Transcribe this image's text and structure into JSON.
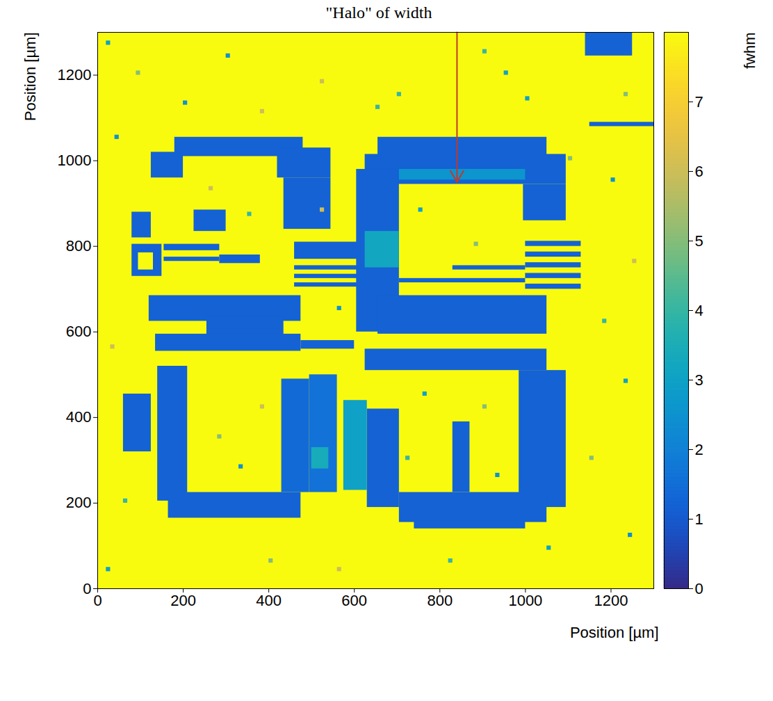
{
  "chart_data": {
    "type": "heatmap",
    "title": "\"Halo\" of width",
    "x_label": "Position [µm]",
    "y_label": "Position [µm]",
    "xlim": [
      0,
      1300
    ],
    "ylim": [
      0,
      1300
    ],
    "xticks": [
      0,
      200,
      400,
      600,
      800,
      1000,
      1200
    ],
    "yticks": [
      0,
      200,
      400,
      600,
      800,
      1000,
      1200
    ],
    "colorbar": {
      "label": "fwhm",
      "range": [
        0,
        8
      ],
      "ticks": [
        0,
        1,
        2,
        3,
        4,
        5,
        6,
        7
      ]
    },
    "arrow": {
      "x": 840,
      "from": 1300,
      "to": 950,
      "color": "#c0392b"
    },
    "cells": [
      {
        "x1": 0,
        "x2": 1300,
        "y1": 0,
        "y2": 1300,
        "value": 8
      },
      {
        "x1": 1140,
        "x2": 1250,
        "y1": 1245,
        "y2": 1300,
        "value": 1.2
      },
      {
        "x1": 1150,
        "x2": 1300,
        "y1": 1080,
        "y2": 1090,
        "value": 1.2
      },
      {
        "x1": 180,
        "x2": 480,
        "y1": 1010,
        "y2": 1055,
        "value": 1.2
      },
      {
        "x1": 125,
        "x2": 200,
        "y1": 960,
        "y2": 1020,
        "value": 1.2
      },
      {
        "x1": 420,
        "x2": 545,
        "y1": 960,
        "y2": 1030,
        "value": 1.2
      },
      {
        "x1": 435,
        "x2": 545,
        "y1": 840,
        "y2": 960,
        "value": 1.2
      },
      {
        "x1": 80,
        "x2": 125,
        "y1": 820,
        "y2": 880,
        "value": 1.2
      },
      {
        "x1": 225,
        "x2": 300,
        "y1": 835,
        "y2": 885,
        "value": 1.2
      },
      {
        "x1": 80,
        "x2": 150,
        "y1": 730,
        "y2": 805,
        "value": 1.2
      },
      {
        "x1": 95,
        "x2": 130,
        "y1": 745,
        "y2": 785,
        "value": 8
      },
      {
        "x1": 155,
        "x2": 285,
        "y1": 790,
        "y2": 805,
        "value": 1.2
      },
      {
        "x1": 155,
        "x2": 285,
        "y1": 765,
        "y2": 775,
        "value": 1.2
      },
      {
        "x1": 285,
        "x2": 380,
        "y1": 760,
        "y2": 780,
        "value": 1.2
      },
      {
        "x1": 460,
        "x2": 610,
        "y1": 770,
        "y2": 810,
        "value": 1.2
      },
      {
        "x1": 460,
        "x2": 610,
        "y1": 745,
        "y2": 755,
        "value": 1.2
      },
      {
        "x1": 460,
        "x2": 610,
        "y1": 725,
        "y2": 735,
        "value": 1.2
      },
      {
        "x1": 460,
        "x2": 610,
        "y1": 705,
        "y2": 715,
        "value": 1.2
      },
      {
        "x1": 655,
        "x2": 1050,
        "y1": 980,
        "y2": 1055,
        "value": 1.2
      },
      {
        "x1": 625,
        "x2": 1095,
        "y1": 945,
        "y2": 1015,
        "value": 1.2
      },
      {
        "x1": 605,
        "x2": 705,
        "y1": 600,
        "y2": 980,
        "value": 1.2
      },
      {
        "x1": 655,
        "x2": 1050,
        "y1": 595,
        "y2": 685,
        "value": 1.2
      },
      {
        "x1": 995,
        "x2": 1095,
        "y1": 860,
        "y2": 945,
        "value": 1.2
      },
      {
        "x1": 1000,
        "x2": 1130,
        "y1": 800,
        "y2": 812,
        "value": 1.2
      },
      {
        "x1": 1000,
        "x2": 1130,
        "y1": 775,
        "y2": 787,
        "value": 1.2
      },
      {
        "x1": 1000,
        "x2": 1130,
        "y1": 750,
        "y2": 762,
        "value": 1.2
      },
      {
        "x1": 1000,
        "x2": 1130,
        "y1": 725,
        "y2": 737,
        "value": 1.2
      },
      {
        "x1": 1000,
        "x2": 1130,
        "y1": 700,
        "y2": 712,
        "value": 1.2
      },
      {
        "x1": 705,
        "x2": 1000,
        "y1": 715,
        "y2": 725,
        "value": 1.2
      },
      {
        "x1": 830,
        "x2": 1000,
        "y1": 745,
        "y2": 755,
        "value": 1.2
      },
      {
        "x1": 705,
        "x2": 1000,
        "y1": 955,
        "y2": 980,
        "value": 2.6
      },
      {
        "x1": 625,
        "x2": 705,
        "y1": 750,
        "y2": 835,
        "value": 3.2
      },
      {
        "x1": 120,
        "x2": 475,
        "y1": 625,
        "y2": 685,
        "value": 1.2
      },
      {
        "x1": 255,
        "x2": 435,
        "y1": 585,
        "y2": 635,
        "value": 1.2
      },
      {
        "x1": 135,
        "x2": 475,
        "y1": 555,
        "y2": 595,
        "value": 1.2
      },
      {
        "x1": 475,
        "x2": 600,
        "y1": 560,
        "y2": 580,
        "value": 1.2
      },
      {
        "x1": 625,
        "x2": 1050,
        "y1": 510,
        "y2": 560,
        "value": 1.2
      },
      {
        "x1": 985,
        "x2": 1095,
        "y1": 190,
        "y2": 510,
        "value": 1.2
      },
      {
        "x1": 705,
        "x2": 1050,
        "y1": 155,
        "y2": 225,
        "value": 1.2
      },
      {
        "x1": 740,
        "x2": 1000,
        "y1": 140,
        "y2": 158,
        "value": 1.2
      },
      {
        "x1": 630,
        "x2": 705,
        "y1": 190,
        "y2": 420,
        "value": 1.2
      },
      {
        "x1": 830,
        "x2": 870,
        "y1": 225,
        "y2": 390,
        "value": 1.2
      },
      {
        "x1": 60,
        "x2": 125,
        "y1": 320,
        "y2": 455,
        "value": 1.2
      },
      {
        "x1": 140,
        "x2": 210,
        "y1": 205,
        "y2": 520,
        "value": 1.2
      },
      {
        "x1": 165,
        "x2": 475,
        "y1": 165,
        "y2": 225,
        "value": 1.2
      },
      {
        "x1": 430,
        "x2": 495,
        "y1": 225,
        "y2": 490,
        "value": 1.4
      },
      {
        "x1": 495,
        "x2": 560,
        "y1": 225,
        "y2": 500,
        "value": 1.6
      },
      {
        "x1": 575,
        "x2": 630,
        "y1": 230,
        "y2": 440,
        "value": 3.0
      },
      {
        "x1": 500,
        "x2": 540,
        "y1": 280,
        "y2": 330,
        "value": 3.4
      },
      {
        "x1": 20,
        "x2": 30,
        "y1": 1270,
        "y2": 1280,
        "value": 3
      },
      {
        "x1": 90,
        "x2": 100,
        "y1": 1200,
        "y2": 1210,
        "value": 5
      },
      {
        "x1": 300,
        "x2": 310,
        "y1": 1240,
        "y2": 1250,
        "value": 2.5
      },
      {
        "x1": 520,
        "x2": 530,
        "y1": 1180,
        "y2": 1190,
        "value": 6
      },
      {
        "x1": 700,
        "x2": 710,
        "y1": 1150,
        "y2": 1160,
        "value": 4
      },
      {
        "x1": 950,
        "x2": 960,
        "y1": 1200,
        "y2": 1210,
        "value": 3
      },
      {
        "x1": 1230,
        "x2": 1240,
        "y1": 1150,
        "y2": 1160,
        "value": 5
      },
      {
        "x1": 40,
        "x2": 50,
        "y1": 1050,
        "y2": 1060,
        "value": 2.5
      },
      {
        "x1": 260,
        "x2": 270,
        "y1": 930,
        "y2": 940,
        "value": 6
      },
      {
        "x1": 350,
        "x2": 360,
        "y1": 870,
        "y2": 880,
        "value": 4
      },
      {
        "x1": 750,
        "x2": 760,
        "y1": 880,
        "y2": 890,
        "value": 3
      },
      {
        "x1": 880,
        "x2": 890,
        "y1": 800,
        "y2": 810,
        "value": 5
      },
      {
        "x1": 1200,
        "x2": 1210,
        "y1": 950,
        "y2": 960,
        "value": 2.5
      },
      {
        "x1": 1250,
        "x2": 1260,
        "y1": 760,
        "y2": 770,
        "value": 6
      },
      {
        "x1": 1180,
        "x2": 1190,
        "y1": 620,
        "y2": 630,
        "value": 4
      },
      {
        "x1": 1230,
        "x2": 1240,
        "y1": 480,
        "y2": 490,
        "value": 3
      },
      {
        "x1": 1150,
        "x2": 1160,
        "y1": 300,
        "y2": 310,
        "value": 5
      },
      {
        "x1": 1240,
        "x2": 1250,
        "y1": 120,
        "y2": 130,
        "value": 2.5
      },
      {
        "x1": 30,
        "x2": 40,
        "y1": 560,
        "y2": 570,
        "value": 6
      },
      {
        "x1": 60,
        "x2": 70,
        "y1": 200,
        "y2": 210,
        "value": 4
      },
      {
        "x1": 20,
        "x2": 30,
        "y1": 40,
        "y2": 50,
        "value": 3
      },
      {
        "x1": 280,
        "x2": 290,
        "y1": 350,
        "y2": 360,
        "value": 5
      },
      {
        "x1": 330,
        "x2": 340,
        "y1": 280,
        "y2": 290,
        "value": 2.5
      },
      {
        "x1": 380,
        "x2": 390,
        "y1": 420,
        "y2": 430,
        "value": 6
      },
      {
        "x1": 720,
        "x2": 730,
        "y1": 300,
        "y2": 310,
        "value": 4
      },
      {
        "x1": 760,
        "x2": 770,
        "y1": 450,
        "y2": 460,
        "value": 3
      },
      {
        "x1": 900,
        "x2": 910,
        "y1": 420,
        "y2": 430,
        "value": 5
      },
      {
        "x1": 930,
        "x2": 940,
        "y1": 260,
        "y2": 270,
        "value": 2.5
      },
      {
        "x1": 560,
        "x2": 570,
        "y1": 40,
        "y2": 50,
        "value": 6
      },
      {
        "x1": 820,
        "x2": 830,
        "y1": 60,
        "y2": 70,
        "value": 4
      },
      {
        "x1": 1050,
        "x2": 1060,
        "y1": 90,
        "y2": 100,
        "value": 3
      },
      {
        "x1": 400,
        "x2": 410,
        "y1": 60,
        "y2": 70,
        "value": 5
      },
      {
        "x1": 560,
        "x2": 570,
        "y1": 650,
        "y2": 660,
        "value": 2.5
      },
      {
        "x1": 520,
        "x2": 530,
        "y1": 880,
        "y2": 890,
        "value": 6
      },
      {
        "x1": 650,
        "x2": 660,
        "y1": 1120,
        "y2": 1130,
        "value": 4
      },
      {
        "x1": 1000,
        "x2": 1010,
        "y1": 1140,
        "y2": 1150,
        "value": 3
      },
      {
        "x1": 1100,
        "x2": 1110,
        "y1": 1000,
        "y2": 1010,
        "value": 5
      },
      {
        "x1": 200,
        "x2": 210,
        "y1": 1130,
        "y2": 1140,
        "value": 2.5
      },
      {
        "x1": 380,
        "x2": 390,
        "y1": 1110,
        "y2": 1120,
        "value": 6
      },
      {
        "x1": 900,
        "x2": 910,
        "y1": 1250,
        "y2": 1260,
        "value": 4
      }
    ]
  }
}
